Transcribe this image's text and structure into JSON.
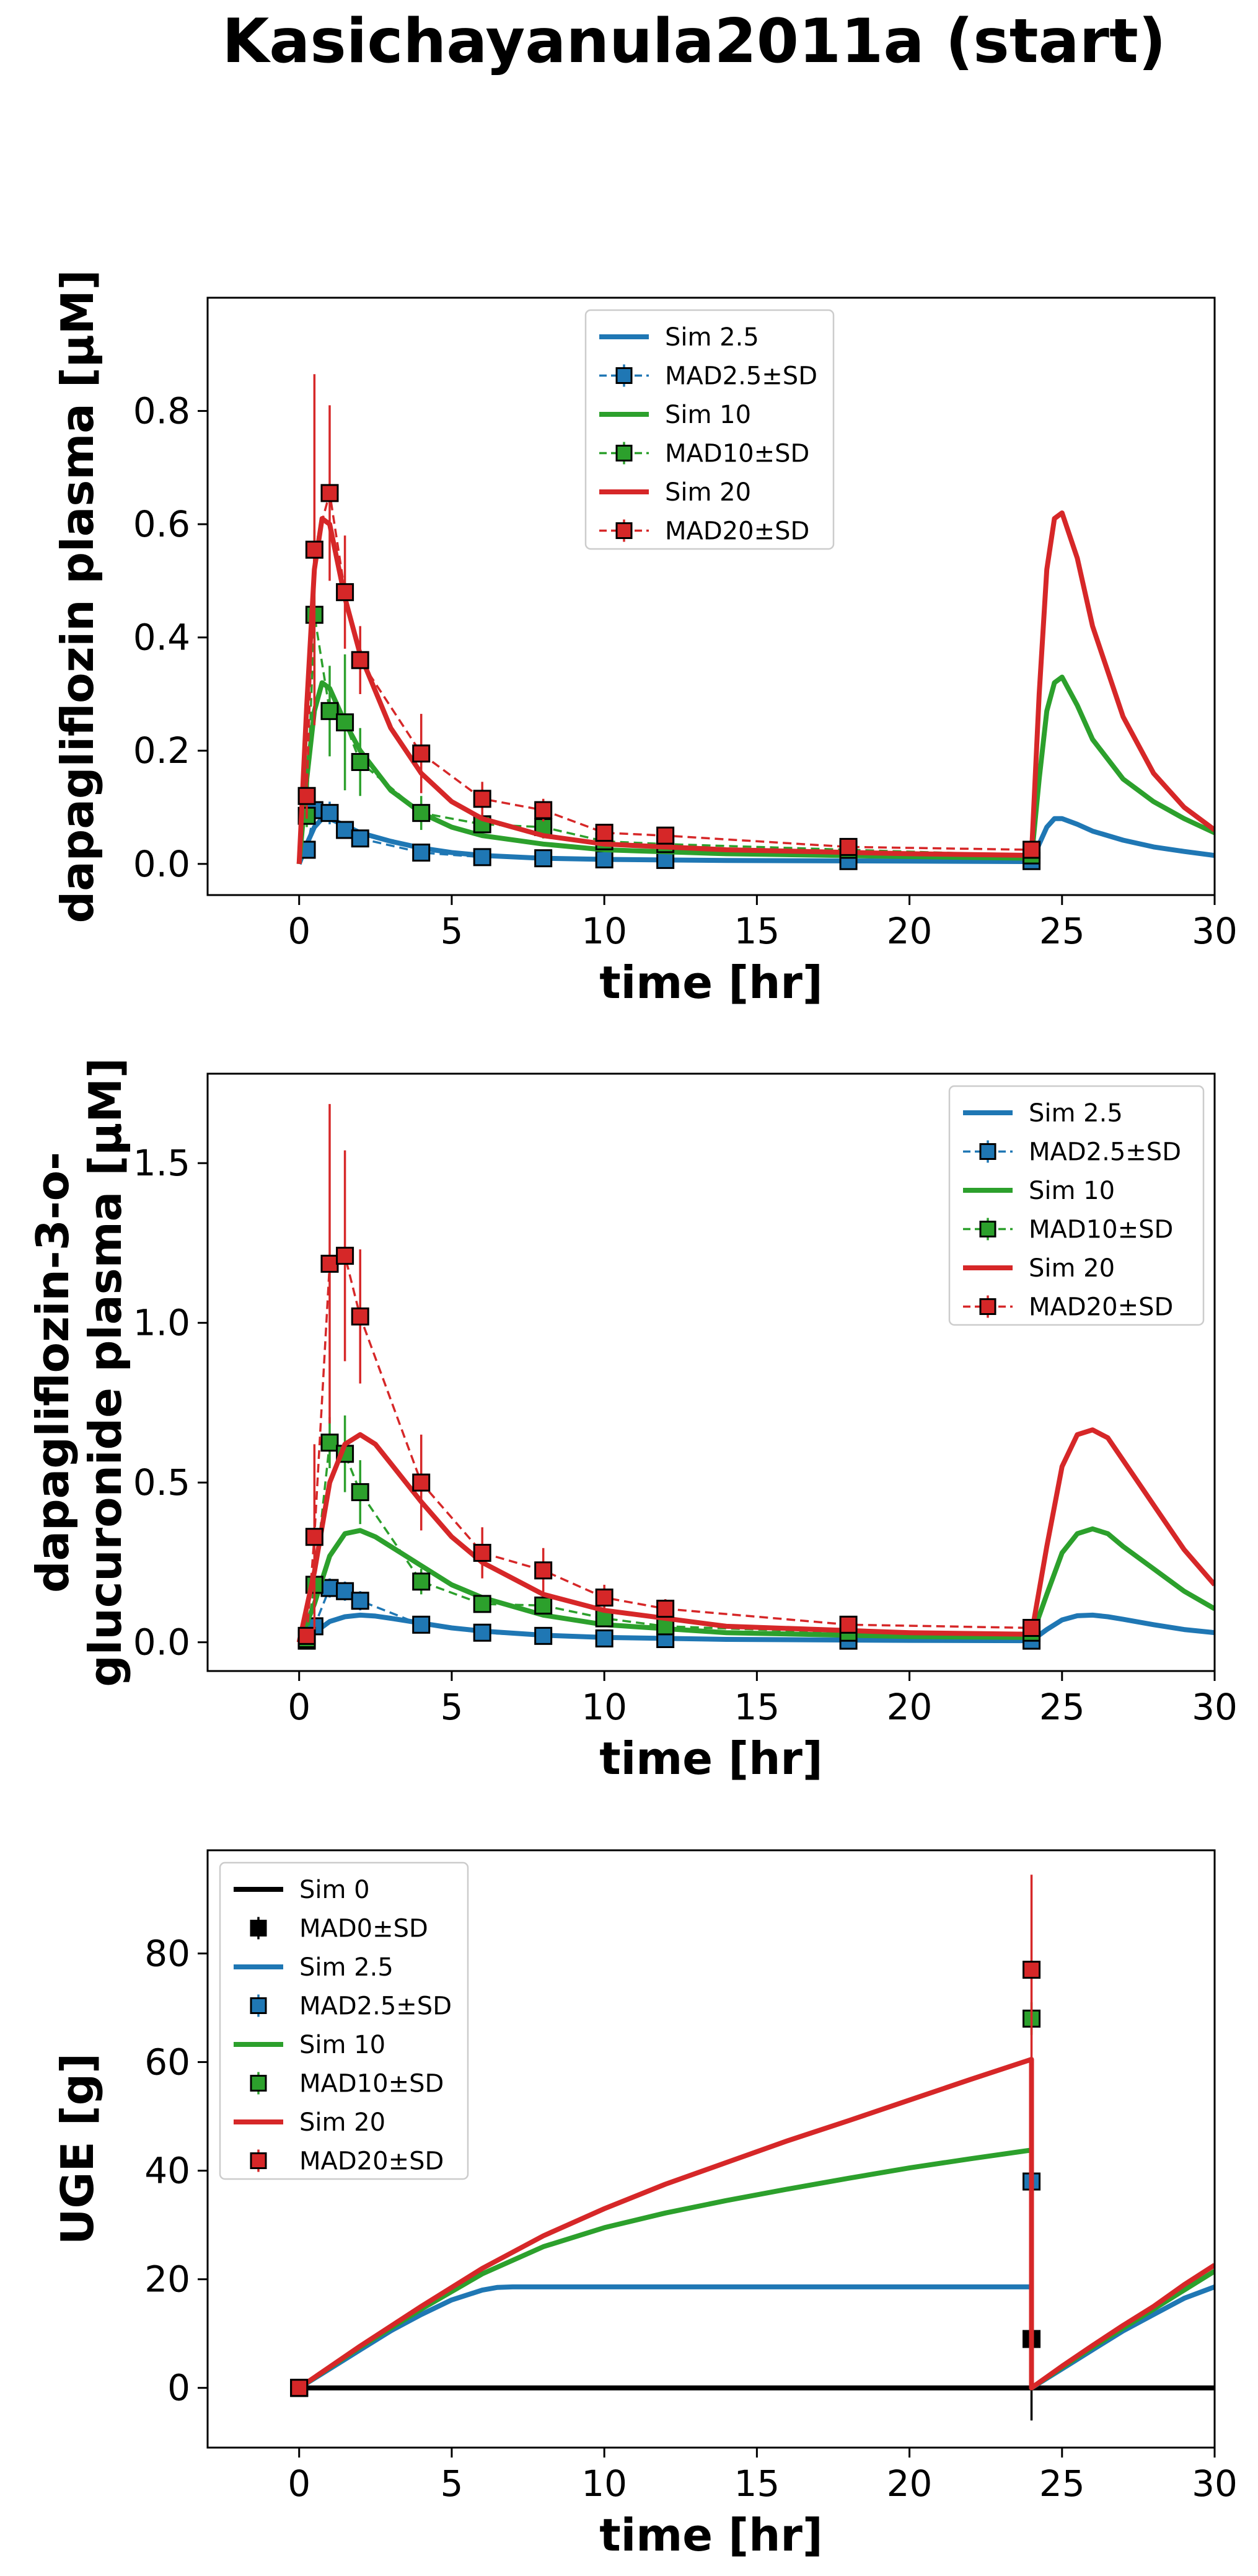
{
  "figure": {
    "title": "Kasichayanula2011a (start)"
  },
  "colors": {
    "sim0": "#000000",
    "sim2_5": "#1f77b4",
    "sim10": "#2ca02c",
    "sim20": "#d62728"
  },
  "chart_data": [
    {
      "type": "line",
      "xlabel": "time [hr]",
      "ylabel": "dapagliflozin plasma [μM]",
      "xlim": [
        -3,
        30
      ],
      "ylim": [
        -0.055,
        1.0
      ],
      "xticks": [
        0,
        5,
        10,
        15,
        20,
        25,
        30
      ],
      "yticks": [
        0.0,
        0.2,
        0.4,
        0.6,
        0.8
      ],
      "legend": "upper-center",
      "legend_entries": [
        "Sim 2.5",
        "MAD2.5±SD",
        "Sim 10",
        "MAD10±SD",
        "Sim 20",
        "MAD20±SD"
      ],
      "series": [
        {
          "name": "Sim 2.5",
          "kind": "sim",
          "color": "#1f77b4",
          "x": [
            0,
            0.25,
            0.5,
            0.75,
            1,
            1.5,
            2,
            3,
            4,
            5,
            6,
            8,
            10,
            14,
            20,
            24,
            24.25,
            24.5,
            24.75,
            25,
            25.5,
            26,
            27,
            28,
            29,
            30
          ],
          "y": [
            0,
            0.035,
            0.065,
            0.08,
            0.08,
            0.068,
            0.055,
            0.04,
            0.028,
            0.02,
            0.015,
            0.01,
            0.008,
            0.006,
            0.005,
            0.004,
            0.035,
            0.065,
            0.08,
            0.08,
            0.07,
            0.058,
            0.042,
            0.03,
            0.022,
            0.015
          ]
        },
        {
          "name": "MAD2.5±SD",
          "kind": "data",
          "color": "#1f77b4",
          "x": [
            0.25,
            0.5,
            1,
            1.5,
            2,
            4,
            6,
            8,
            10,
            12,
            18,
            24
          ],
          "y": [
            0.025,
            0.095,
            0.09,
            0.06,
            0.045,
            0.02,
            0.012,
            0.01,
            0.008,
            0.007,
            0.005,
            0.005
          ],
          "sd": [
            0.005,
            0.01,
            0.02,
            0.01,
            0.01,
            0.005,
            0.003,
            0.003,
            0.002,
            0.002,
            0.002,
            0.002
          ]
        },
        {
          "name": "Sim 10",
          "kind": "sim",
          "color": "#2ca02c",
          "x": [
            0,
            0.25,
            0.5,
            0.75,
            1,
            1.5,
            2,
            3,
            4,
            5,
            6,
            8,
            10,
            14,
            20,
            24,
            24.25,
            24.5,
            24.75,
            25,
            25.5,
            26,
            27,
            28,
            29,
            30
          ],
          "y": [
            0,
            0.15,
            0.27,
            0.32,
            0.31,
            0.25,
            0.2,
            0.13,
            0.09,
            0.065,
            0.05,
            0.035,
            0.025,
            0.018,
            0.013,
            0.01,
            0.15,
            0.27,
            0.32,
            0.33,
            0.28,
            0.22,
            0.15,
            0.11,
            0.08,
            0.055
          ]
        },
        {
          "name": "MAD10±SD",
          "kind": "data",
          "color": "#2ca02c",
          "x": [
            0.25,
            0.5,
            1,
            1.5,
            2,
            4,
            6,
            8,
            10,
            12,
            18,
            24
          ],
          "y": [
            0.085,
            0.44,
            0.27,
            0.25,
            0.18,
            0.09,
            0.07,
            0.065,
            0.04,
            0.035,
            0.025,
            0.015
          ],
          "sd": [
            0.02,
            0.15,
            0.08,
            0.12,
            0.06,
            0.03,
            0.02,
            0.02,
            0.01,
            0.01,
            0.008,
            0.005
          ]
        },
        {
          "name": "Sim 20",
          "kind": "sim",
          "color": "#d62728",
          "x": [
            0,
            0.25,
            0.5,
            0.75,
            1,
            1.5,
            2,
            3,
            4,
            5,
            6,
            8,
            10,
            14,
            20,
            24,
            24.25,
            24.5,
            24.75,
            25,
            25.5,
            26,
            27,
            28,
            29,
            30
          ],
          "y": [
            0,
            0.28,
            0.52,
            0.61,
            0.6,
            0.47,
            0.37,
            0.24,
            0.16,
            0.11,
            0.08,
            0.05,
            0.035,
            0.025,
            0.018,
            0.015,
            0.3,
            0.52,
            0.61,
            0.62,
            0.54,
            0.42,
            0.26,
            0.16,
            0.1,
            0.06
          ]
        },
        {
          "name": "MAD20±SD",
          "kind": "data",
          "color": "#d62728",
          "x": [
            0.25,
            0.5,
            1,
            1.5,
            2,
            4,
            6,
            8,
            10,
            12,
            18,
            24
          ],
          "y": [
            0.12,
            0.555,
            0.655,
            0.48,
            0.36,
            0.195,
            0.115,
            0.095,
            0.055,
            0.05,
            0.03,
            0.025
          ],
          "sd": [
            0.04,
            0.31,
            0.155,
            0.1,
            0.06,
            0.07,
            0.03,
            0.02,
            0.01,
            0.01,
            0.008,
            0.006
          ]
        }
      ]
    },
    {
      "type": "line",
      "xlabel": "time [hr]",
      "ylabel": "dapagliflozin-3-o-glucuronide plasma [μM]",
      "ylabel_lines": [
        "dapagliflozin-3-o-",
        "glucuronide plasma [μM]"
      ],
      "xlim": [
        -3,
        30
      ],
      "ylim": [
        -0.09,
        1.78
      ],
      "xticks": [
        0,
        5,
        10,
        15,
        20,
        25,
        30
      ],
      "yticks": [
        0.0,
        0.5,
        1.0,
        1.5
      ],
      "legend": "upper-right",
      "legend_entries": [
        "Sim 2.5",
        "MAD2.5±SD",
        "Sim 10",
        "MAD10±SD",
        "Sim 20",
        "MAD20±SD"
      ],
      "series": [
        {
          "name": "Sim 2.5",
          "kind": "sim",
          "color": "#1f77b4",
          "x": [
            0,
            0.5,
            1,
            1.5,
            2,
            2.5,
            3,
            4,
            5,
            6,
            8,
            10,
            14,
            20,
            24,
            24.5,
            25,
            25.5,
            26,
            26.5,
            27,
            28,
            29,
            30
          ],
          "y": [
            0,
            0.03,
            0.065,
            0.08,
            0.085,
            0.082,
            0.075,
            0.06,
            0.045,
            0.035,
            0.022,
            0.015,
            0.009,
            0.006,
            0.005,
            0.04,
            0.07,
            0.083,
            0.085,
            0.08,
            0.072,
            0.055,
            0.04,
            0.03
          ]
        },
        {
          "name": "MAD2.5±SD",
          "kind": "data",
          "color": "#1f77b4",
          "x": [
            0.25,
            0.5,
            1,
            1.5,
            2,
            4,
            6,
            8,
            10,
            12,
            18,
            24
          ],
          "y": [
            0.005,
            0.05,
            0.17,
            0.16,
            0.13,
            0.055,
            0.03,
            0.02,
            0.012,
            0.01,
            0.005,
            0.005
          ],
          "sd": [
            0.003,
            0.02,
            0.03,
            0.03,
            0.03,
            0.015,
            0.008,
            0.005,
            0.004,
            0.003,
            0.002,
            0.002
          ]
        },
        {
          "name": "Sim 10",
          "kind": "sim",
          "color": "#2ca02c",
          "x": [
            0,
            0.5,
            1,
            1.5,
            2,
            2.5,
            3,
            4,
            5,
            6,
            8,
            10,
            14,
            20,
            24,
            24.5,
            25,
            25.5,
            26,
            26.5,
            27,
            28,
            29,
            30
          ],
          "y": [
            0,
            0.12,
            0.27,
            0.34,
            0.35,
            0.33,
            0.3,
            0.24,
            0.18,
            0.14,
            0.085,
            0.055,
            0.03,
            0.018,
            0.015,
            0.15,
            0.28,
            0.34,
            0.355,
            0.34,
            0.3,
            0.23,
            0.16,
            0.105
          ]
        },
        {
          "name": "MAD10±SD",
          "kind": "data",
          "color": "#2ca02c",
          "x": [
            0.25,
            0.5,
            1,
            1.5,
            2,
            4,
            6,
            8,
            10,
            12,
            18,
            24
          ],
          "y": [
            0.01,
            0.18,
            0.625,
            0.59,
            0.47,
            0.19,
            0.12,
            0.115,
            0.075,
            0.05,
            0.03,
            0.03
          ],
          "sd": [
            0.005,
            0.06,
            0.08,
            0.12,
            0.1,
            0.04,
            0.025,
            0.02,
            0.015,
            0.01,
            0.008,
            0.008
          ]
        },
        {
          "name": "Sim 20",
          "kind": "sim",
          "color": "#d62728",
          "x": [
            0,
            0.5,
            1,
            1.5,
            2,
            2.5,
            3,
            4,
            5,
            6,
            8,
            10,
            14,
            20,
            24,
            24.5,
            25,
            25.5,
            26,
            26.5,
            27,
            28,
            29,
            30
          ],
          "y": [
            0,
            0.22,
            0.5,
            0.62,
            0.65,
            0.62,
            0.56,
            0.44,
            0.33,
            0.25,
            0.15,
            0.1,
            0.05,
            0.03,
            0.025,
            0.3,
            0.55,
            0.65,
            0.665,
            0.64,
            0.57,
            0.43,
            0.29,
            0.18
          ]
        },
        {
          "name": "MAD20±SD",
          "kind": "data",
          "color": "#d62728",
          "x": [
            0.25,
            0.5,
            1,
            1.5,
            2,
            4,
            6,
            8,
            10,
            12,
            18,
            24
          ],
          "y": [
            0.02,
            0.33,
            1.185,
            1.21,
            1.02,
            0.5,
            0.28,
            0.225,
            0.14,
            0.105,
            0.055,
            0.045
          ],
          "sd": [
            0.01,
            0.29,
            0.5,
            0.33,
            0.21,
            0.15,
            0.08,
            0.07,
            0.04,
            0.03,
            0.015,
            0.012
          ]
        }
      ]
    },
    {
      "type": "line",
      "xlabel": "time [hr]",
      "ylabel": "UGE [g]",
      "xlim": [
        -3,
        30
      ],
      "ylim": [
        -11,
        99
      ],
      "xticks": [
        0,
        5,
        10,
        15,
        20,
        25,
        30
      ],
      "yticks": [
        0,
        20,
        40,
        60,
        80
      ],
      "legend": "upper-left",
      "legend_entries": [
        "Sim 0",
        "MAD0±SD",
        "Sim 2.5",
        "MAD2.5±SD",
        "Sim 10",
        "MAD10±SD",
        "Sim 20",
        "MAD20±SD"
      ],
      "series": [
        {
          "name": "Sim 0",
          "kind": "sim",
          "color": "#000000",
          "x": [
            0,
            24,
            24,
            30
          ],
          "y": [
            0,
            0,
            0,
            0
          ]
        },
        {
          "name": "MAD0±SD",
          "kind": "data",
          "color": "#000000",
          "x": [
            0,
            24
          ],
          "y": [
            0,
            9
          ],
          "sd": [
            0,
            15
          ]
        },
        {
          "name": "Sim 2.5",
          "kind": "sim",
          "color": "#1f77b4",
          "x": [
            0,
            1,
            2,
            3,
            4,
            5,
            6,
            6.5,
            7,
            8,
            12,
            16,
            20,
            24,
            24,
            25,
            26,
            27,
            28,
            29,
            30
          ],
          "y": [
            0,
            3.5,
            7,
            10.5,
            13.5,
            16.2,
            18,
            18.5,
            18.6,
            18.6,
            18.6,
            18.6,
            18.6,
            18.6,
            0,
            3.5,
            7,
            10.5,
            13.5,
            16.5,
            18.6
          ]
        },
        {
          "name": "MAD2.5±SD",
          "kind": "data",
          "color": "#1f77b4",
          "x": [
            0,
            24
          ],
          "y": [
            0,
            38
          ],
          "sd": [
            0,
            0.5
          ]
        },
        {
          "name": "Sim 10",
          "kind": "sim",
          "color": "#2ca02c",
          "x": [
            0,
            2,
            4,
            6,
            8,
            10,
            12,
            14,
            16,
            18,
            20,
            22,
            24,
            24,
            25,
            26,
            27,
            28,
            29,
            30
          ],
          "y": [
            0,
            7.5,
            14.5,
            21,
            26,
            29.5,
            32.2,
            34.5,
            36.6,
            38.6,
            40.5,
            42.2,
            43.8,
            0,
            3.8,
            7.5,
            11,
            14.5,
            18,
            21.5
          ]
        },
        {
          "name": "MAD10±SD",
          "kind": "data",
          "color": "#2ca02c",
          "x": [
            0,
            24
          ],
          "y": [
            0,
            68
          ],
          "sd": [
            0,
            3
          ]
        },
        {
          "name": "Sim 20",
          "kind": "sim",
          "color": "#d62728",
          "x": [
            0,
            2,
            4,
            6,
            8,
            10,
            12,
            14,
            16,
            18,
            20,
            22,
            24,
            24,
            25,
            26,
            27,
            28,
            29,
            30
          ],
          "y": [
            0,
            7.7,
            15,
            22,
            28,
            33,
            37.5,
            41.5,
            45.5,
            49.2,
            53,
            56.8,
            60.5,
            0,
            4,
            7.8,
            11.5,
            15,
            19,
            22.6
          ]
        },
        {
          "name": "MAD20±SD",
          "kind": "data",
          "color": "#d62728",
          "x": [
            0,
            24
          ],
          "y": [
            0,
            77
          ],
          "sd": [
            0,
            17.5
          ]
        }
      ]
    }
  ]
}
